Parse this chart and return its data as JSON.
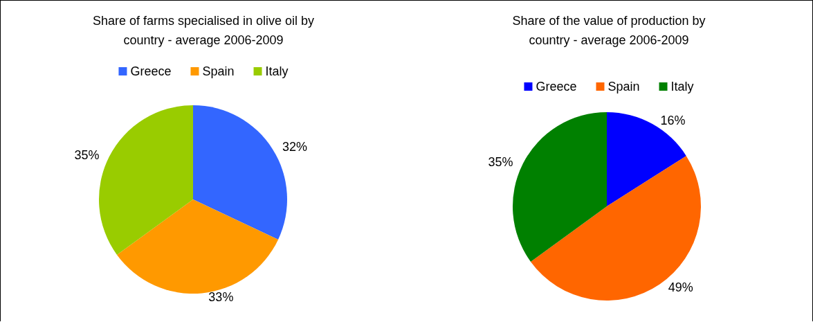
{
  "chart_data": [
    {
      "type": "pie",
      "title": "Share of farms specialised in olive oil by country - average 2006-2009",
      "categories": [
        "Greece",
        "Spain",
        "Italy"
      ],
      "values": [
        32,
        33,
        35
      ],
      "value_labels": [
        "32%",
        "33%",
        "35%"
      ],
      "colors": [
        "#3366ff",
        "#ff9900",
        "#99cc00"
      ],
      "legend": "top"
    },
    {
      "type": "pie",
      "title": "Share of the value of production by country - average 2006-2009",
      "categories": [
        "Greece",
        "Spain",
        "Italy"
      ],
      "values": [
        16,
        49,
        35
      ],
      "value_labels": [
        "16%",
        "49%",
        "35%"
      ],
      "colors": [
        "#0000ff",
        "#ff6600",
        "#008000"
      ],
      "legend": "top"
    }
  ]
}
